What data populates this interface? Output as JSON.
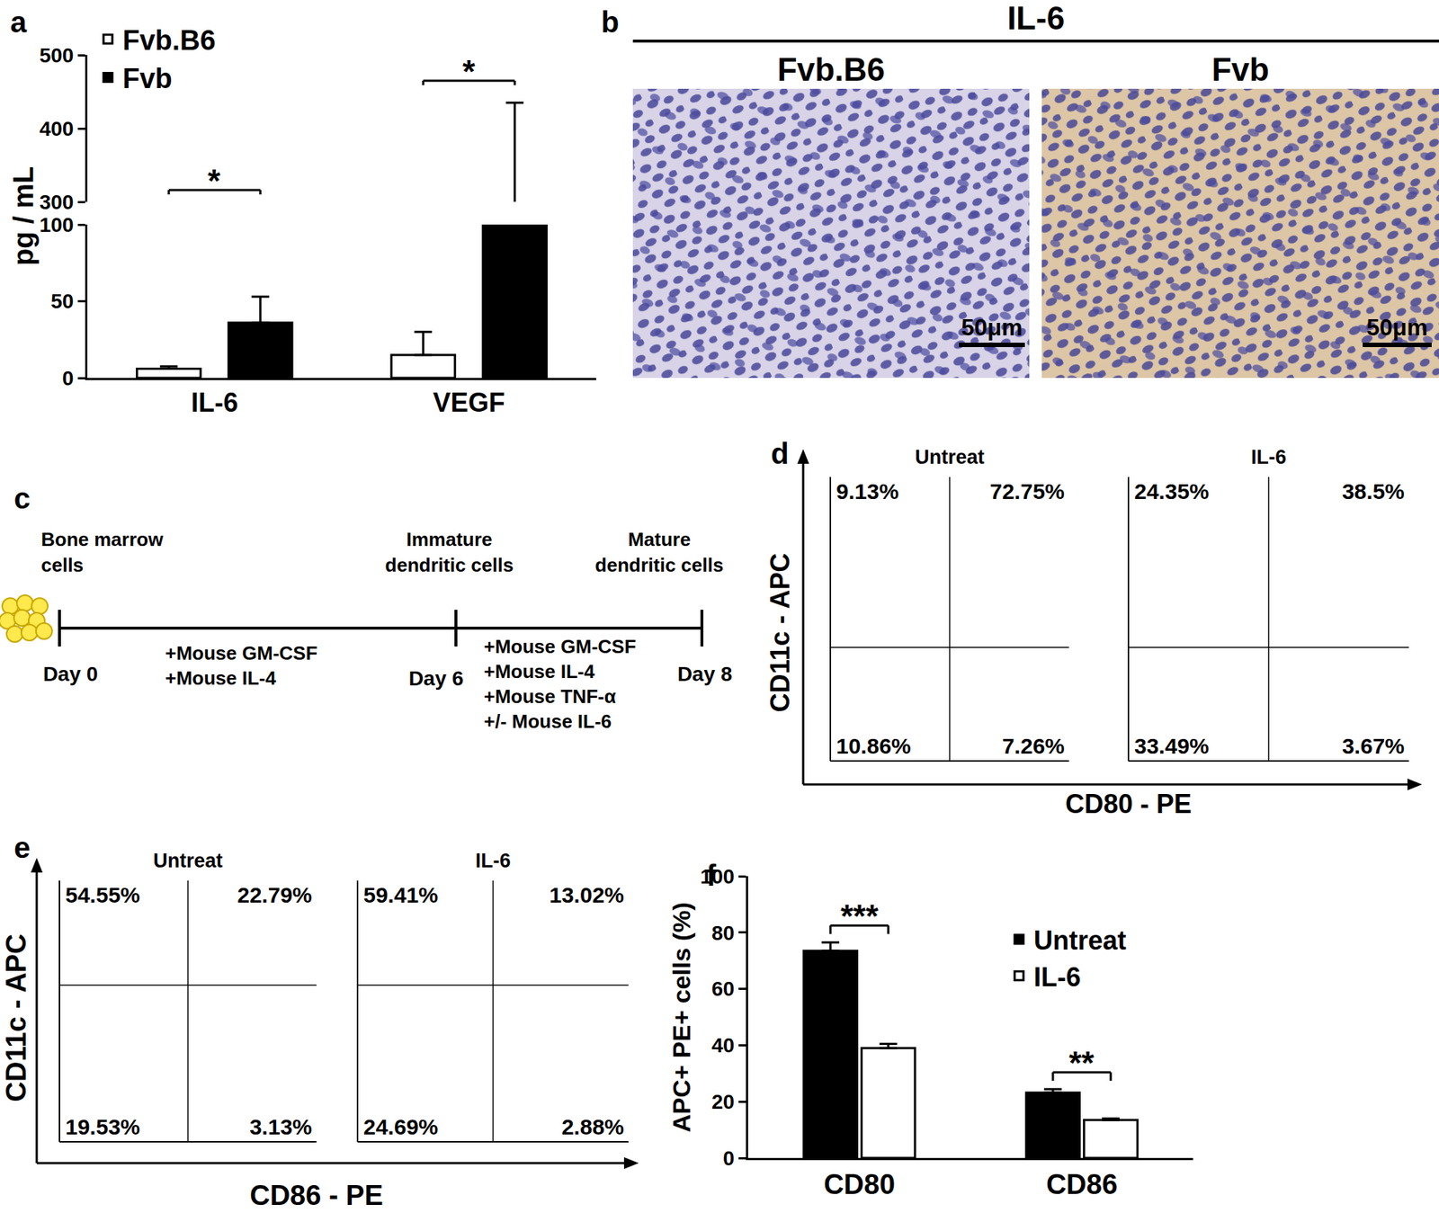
{
  "chart_data": [
    {
      "panel": "a",
      "type": "bar",
      "categories": [
        "IL-6",
        "VEGF"
      ],
      "series": [
        {
          "name": "Fvb.B6",
          "color": "#ffffff",
          "values": [
            6,
            15
          ],
          "errors": [
            1.5,
            15
          ]
        },
        {
          "name": "Fvb",
          "color": "#000000",
          "values": [
            36,
            250
          ],
          "errors": [
            17,
            185
          ]
        }
      ],
      "y_label": "pg / mL",
      "ylim_segments": [
        [
          0,
          100
        ],
        [
          300,
          500
        ]
      ],
      "yticks_segments": [
        [
          0,
          50,
          100
        ],
        [
          300,
          400,
          500
        ]
      ],
      "significance": [
        {
          "category": "IL-6",
          "text": "*"
        },
        {
          "category": "VEGF",
          "text": "*"
        }
      ],
      "legend": "top left",
      "grid": false
    },
    {
      "panel": "f",
      "type": "bar",
      "categories": [
        "CD80",
        "CD86"
      ],
      "series": [
        {
          "name": "Untreat",
          "color": "#000000",
          "values": [
            73.5,
            23.2
          ],
          "errors": [
            3,
            1.2
          ]
        },
        {
          "name": "IL-6",
          "color": "#ffffff",
          "values": [
            39,
            13.5
          ],
          "errors": [
            1.5,
            0.5
          ]
        }
      ],
      "y_label": "APC+ PE+ cells (%)",
      "ylim": [
        0,
        100
      ],
      "yticks": [
        0,
        20,
        40,
        60,
        80,
        100
      ],
      "significance": [
        {
          "category": "CD80",
          "text": "***"
        },
        {
          "category": "CD86",
          "text": "**"
        }
      ],
      "legend": "top right",
      "grid": false
    }
  ],
  "images": {
    "panel": "b",
    "title": "IL-6",
    "labels": [
      "Fvb.B6",
      "Fvb"
    ],
    "scale_bar": "50μm"
  },
  "diagram": {
    "panel": "c",
    "stages": [
      {
        "label": [
          "Bone marrow",
          "cells"
        ],
        "day": "Day 0"
      },
      {
        "label": [
          "Immature",
          "dendritic cells"
        ],
        "day": "Day 6"
      },
      {
        "label": [
          "Mature",
          "dendritic cells"
        ],
        "day": "Day 8"
      }
    ],
    "steps": [
      [
        "+Mouse GM-CSF",
        "+Mouse IL-4"
      ],
      [
        "+Mouse GM-CSF",
        "+Mouse IL-4",
        "+Mouse TNF-α",
        "+/- Mouse IL-6"
      ]
    ]
  },
  "flow": [
    {
      "panel": "d",
      "x_label": "CD80 - PE",
      "y_label": "CD11c - APC",
      "plots": [
        {
          "title": "Untreat",
          "quadrants": {
            "upper_left": "9.13%",
            "upper_right": "72.75%",
            "lower_left": "10.86%",
            "lower_right": "7.26%"
          }
        },
        {
          "title": "IL-6",
          "quadrants": {
            "upper_left": "24.35%",
            "upper_right": "38.5%",
            "lower_left": "33.49%",
            "lower_right": "3.67%"
          }
        }
      ]
    },
    {
      "panel": "e",
      "x_label": "CD86 - PE",
      "y_label": "CD11c - APC",
      "plots": [
        {
          "title": "Untreat",
          "quadrants": {
            "upper_left": "54.55%",
            "upper_right": "22.79%",
            "lower_left": "19.53%",
            "lower_right": "3.13%"
          }
        },
        {
          "title": "IL-6",
          "quadrants": {
            "upper_left": "59.41%",
            "upper_right": "13.02%",
            "lower_left": "24.69%",
            "lower_right": "2.88%"
          }
        }
      ]
    }
  ]
}
